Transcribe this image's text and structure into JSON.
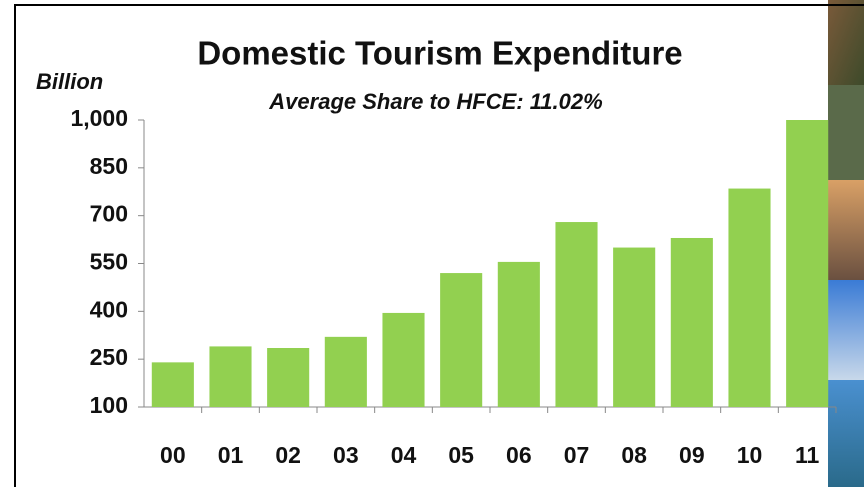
{
  "chart_data": {
    "type": "bar",
    "title": "Domestic Tourism Expenditure",
    "subtitle": "Average Share to HFCE:  11.02%",
    "y_label": "Billion",
    "categories": [
      "00",
      "01",
      "02",
      "03",
      "04",
      "05",
      "06",
      "07",
      "08",
      "09",
      "10",
      "11"
    ],
    "values": [
      240,
      290,
      285,
      320,
      395,
      520,
      555,
      680,
      600,
      630,
      785,
      1000
    ],
    "color": "#92d050",
    "ylim": [
      100,
      1000
    ],
    "yticks": [
      100,
      250,
      400,
      550,
      700,
      850,
      {
        "value": 1000,
        "label": "1,000"
      }
    ],
    "grid": false
  }
}
